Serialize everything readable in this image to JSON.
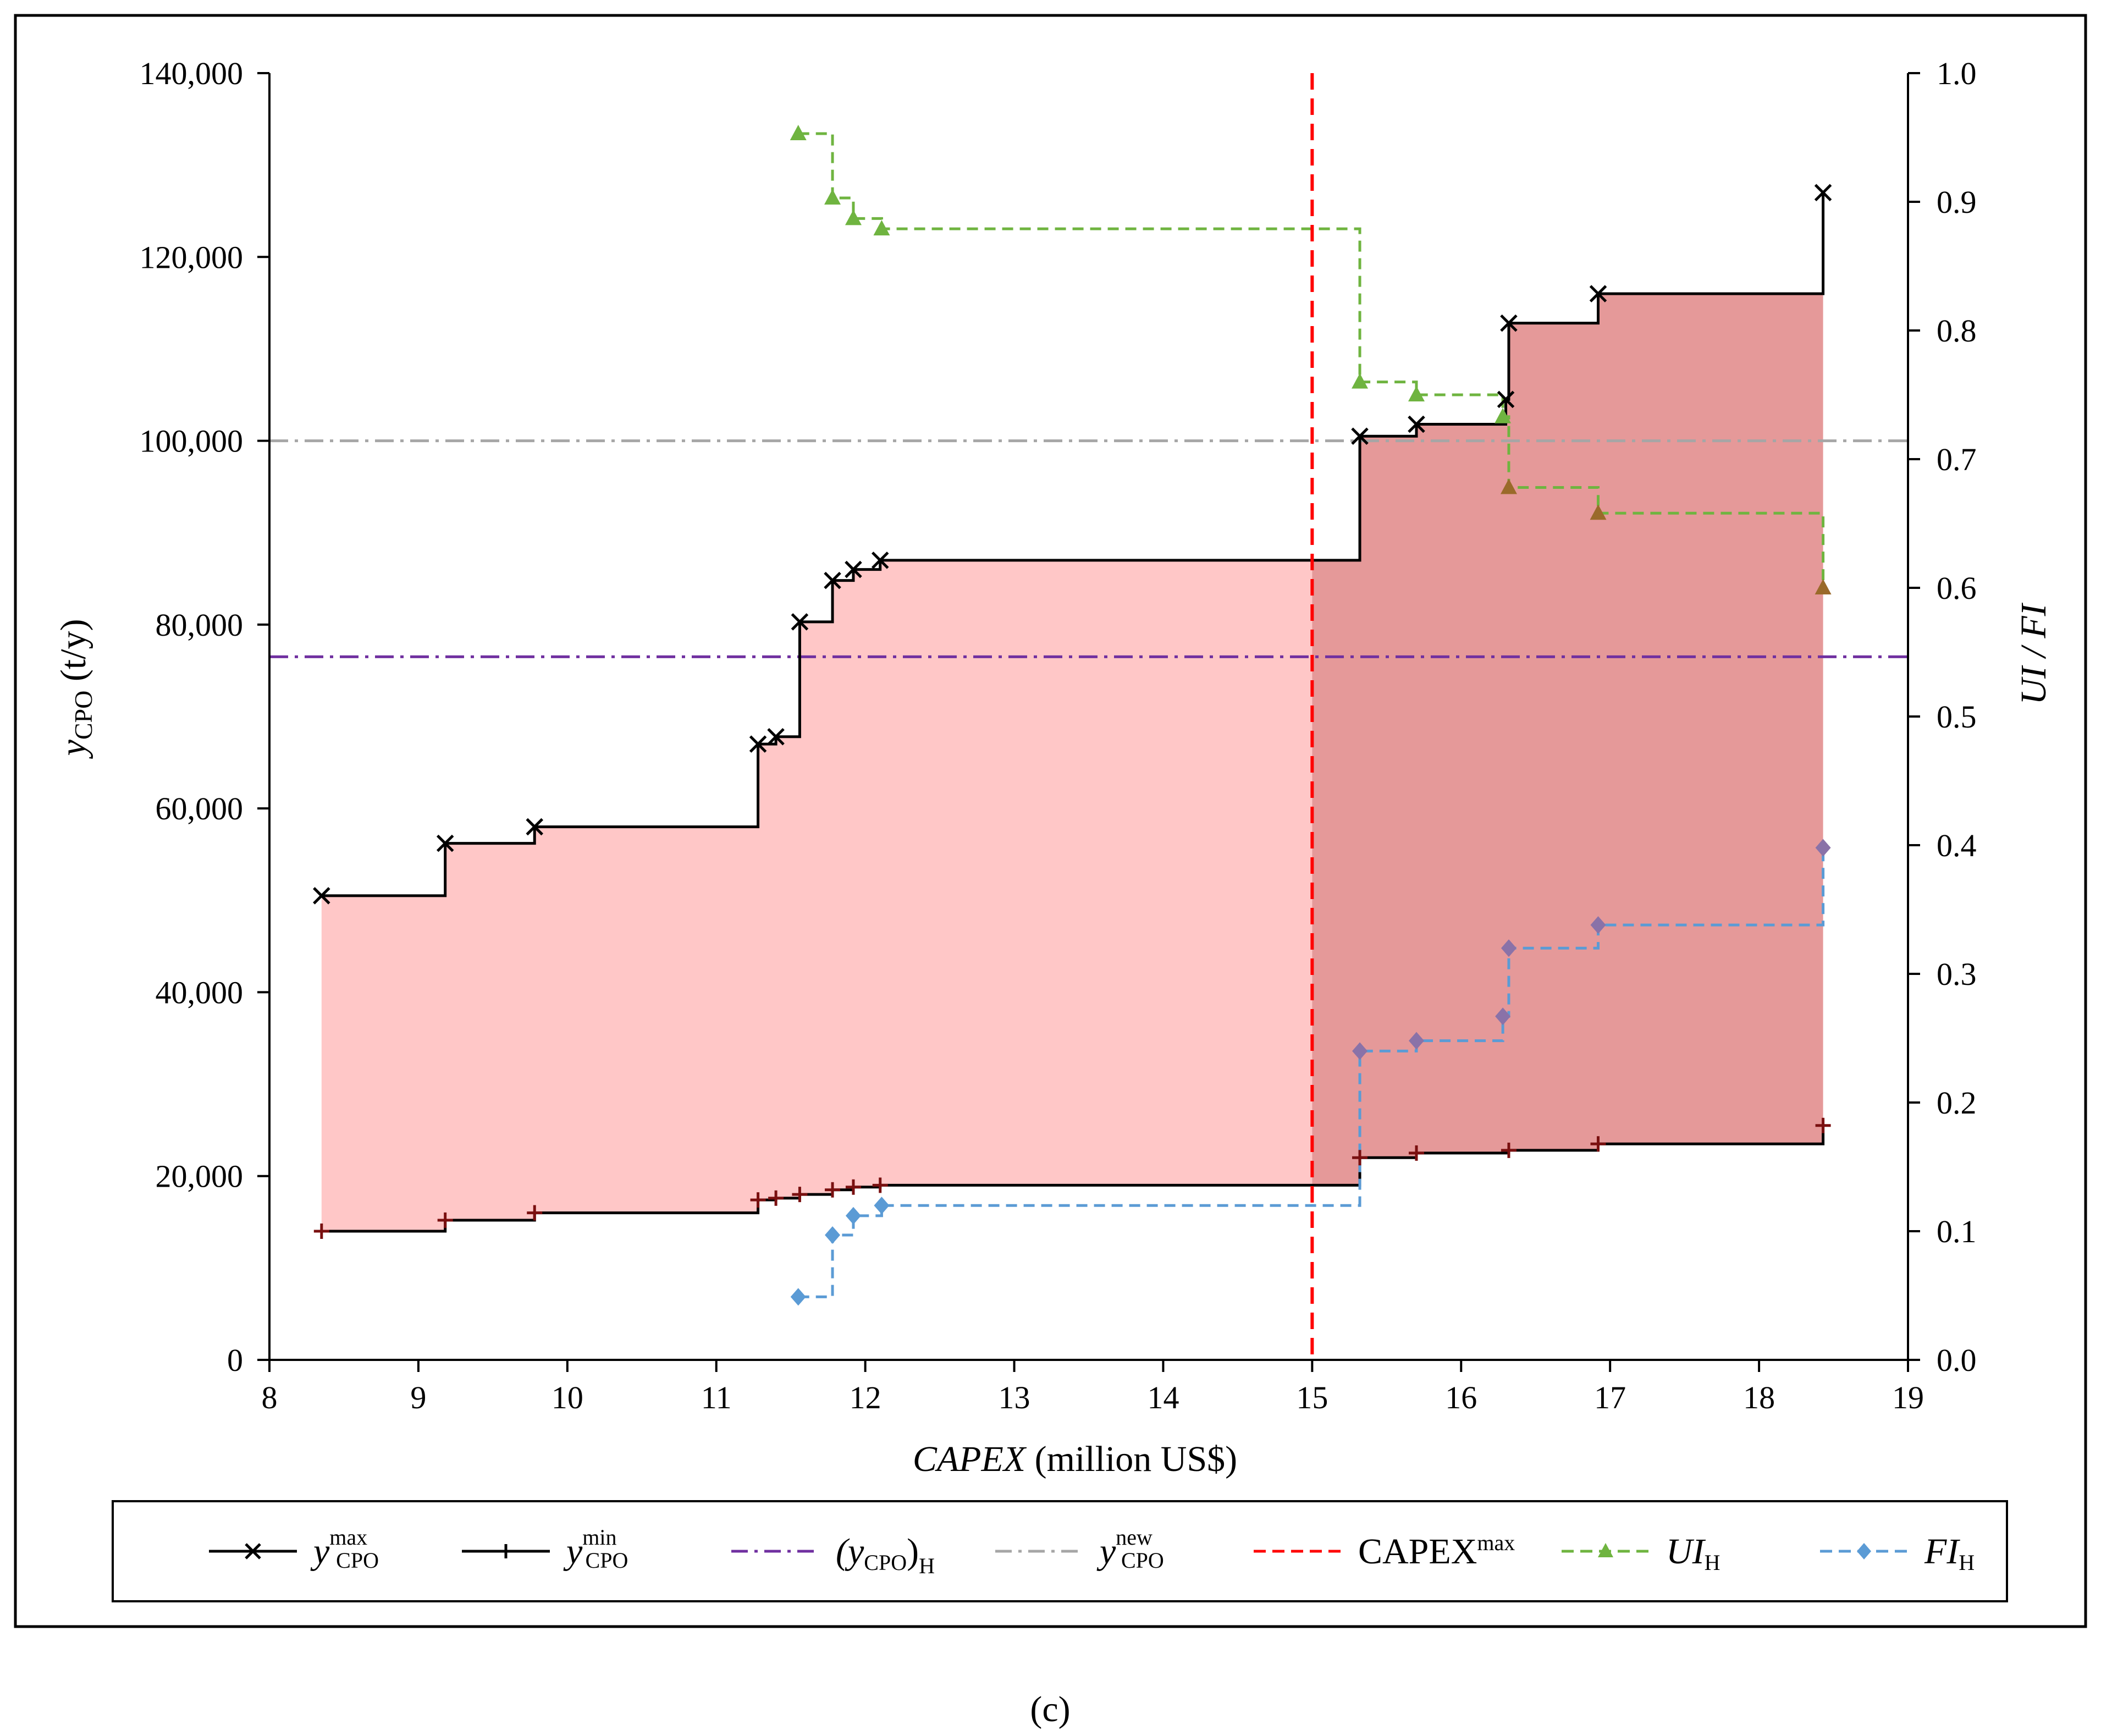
{
  "panel_label": "(c)",
  "chart_data": {
    "type": "line",
    "title": "",
    "xlabel": "CAPEX (million US$)",
    "xlabel_italic_part": "CAPEX",
    "xlabel_rest": " (million US$)",
    "ylabel": "y_CPO (t/y)",
    "ylabel_main": "y",
    "ylabel_sub": "CPO",
    "ylabel_rest": " (t/y)",
    "y2label": "UI / FI",
    "xlim": [
      8,
      19
    ],
    "ylim": [
      0,
      140000
    ],
    "y2lim": [
      0,
      1.0
    ],
    "x_ticks": [
      8,
      9,
      10,
      11,
      12,
      13,
      14,
      15,
      16,
      17,
      18,
      19
    ],
    "x_tick_labels": [
      "8",
      "9",
      "10",
      "11",
      "12",
      "13",
      "14",
      "15",
      "16",
      "17",
      "18",
      "19"
    ],
    "y_ticks": [
      0,
      20000,
      40000,
      60000,
      80000,
      100000,
      120000,
      140000
    ],
    "y_tick_labels": [
      "0",
      "20,000",
      "40,000",
      "60,000",
      "80,000",
      "100,000",
      "120,000",
      "140,000"
    ],
    "y2_ticks": [
      0,
      0.1,
      0.2,
      0.3,
      0.4,
      0.5,
      0.6,
      0.7,
      0.8,
      0.9,
      1.0
    ],
    "y2_tick_labels": [
      "0.0",
      "0.1",
      "0.2",
      "0.3",
      "0.4",
      "0.5",
      "0.6",
      "0.7",
      "0.8",
      "0.9",
      "1.0"
    ],
    "capex_max": 15.0,
    "y_cpo_H": 76500,
    "y_cpo_new": 100000,
    "series": [
      {
        "name": "y_CPO max",
        "axis": "left",
        "style": "step",
        "marker": "x",
        "color": "#000000",
        "x": [
          8.35,
          9.18,
          9.78,
          11.28,
          11.4,
          11.56,
          11.78,
          11.92,
          12.1,
          15.32,
          15.7,
          16.3,
          16.32,
          16.92,
          18.43
        ],
        "y": [
          50500,
          56200,
          58000,
          67000,
          67800,
          80300,
          84800,
          86000,
          87000,
          100500,
          101800,
          104500,
          112800,
          116000,
          127000
        ],
        "final_x": 18.43,
        "final_y": 116000
      },
      {
        "name": "y_CPO min",
        "axis": "left",
        "style": "step",
        "marker": "+",
        "color": "#000000",
        "x": [
          8.35,
          9.18,
          9.78,
          11.28,
          11.4,
          11.56,
          11.78,
          11.92,
          12.1,
          15.32,
          15.7,
          16.32,
          16.92,
          18.43
        ],
        "y": [
          14000,
          15200,
          16000,
          17400,
          17600,
          18000,
          18500,
          18800,
          19000,
          22000,
          22500,
          22800,
          23500,
          25500
        ],
        "final_x": 18.43,
        "final_y": 23500
      },
      {
        "name": "UI_H",
        "axis": "right",
        "style": "step",
        "marker": "triangle",
        "color": "#6fb440",
        "x": [
          11.55,
          11.78,
          11.92,
          12.11,
          15.32,
          15.7,
          16.28,
          16.32,
          16.92,
          18.43
        ],
        "y": [
          0.953,
          0.903,
          0.887,
          0.879,
          0.76,
          0.75,
          0.733,
          0.678,
          0.658,
          0.6
        ]
      },
      {
        "name": "FI_H",
        "axis": "right",
        "style": "step",
        "marker": "diamond",
        "color": "#5b9bd5",
        "x": [
          11.55,
          11.78,
          11.92,
          12.11,
          15.32,
          15.7,
          16.28,
          16.32,
          16.92,
          18.43
        ],
        "y": [
          0.049,
          0.097,
          0.112,
          0.12,
          0.24,
          0.248,
          0.267,
          0.32,
          0.338,
          0.398
        ]
      }
    ],
    "legend": [
      {
        "key": "ymax",
        "main": "y",
        "sup": "max",
        "sub": "CPO",
        "style": "solid",
        "marker": "x",
        "color": "#000000"
      },
      {
        "key": "ymin",
        "main": "y",
        "sup": "min",
        "sub": "CPO",
        "style": "solid",
        "marker": "+",
        "color": "#000000"
      },
      {
        "key": "yH",
        "main": "(y",
        "sub": "CPO",
        "close": ")",
        "sub2": "H",
        "style": "dashdot",
        "color": "#7030a0"
      },
      {
        "key": "ynew",
        "main": "y",
        "sup": "new",
        "sub": "CPO",
        "style": "dashdot",
        "color": "#a6a6a6"
      },
      {
        "key": "capex",
        "main": "CAPEX",
        "sup": "max",
        "style": "dashed",
        "color": "#ff0000"
      },
      {
        "key": "ui",
        "main": "UI",
        "sub": "H",
        "style": "dashed",
        "marker": "triangle",
        "color": "#6fb440"
      },
      {
        "key": "fi",
        "main": "FI",
        "sub": "H",
        "style": "dashed",
        "marker": "diamond",
        "color": "#5b9bd5"
      }
    ],
    "colors": {
      "fill_light": "#ffc7c7",
      "fill_dark": "#e59999",
      "axis": "#000000"
    }
  }
}
